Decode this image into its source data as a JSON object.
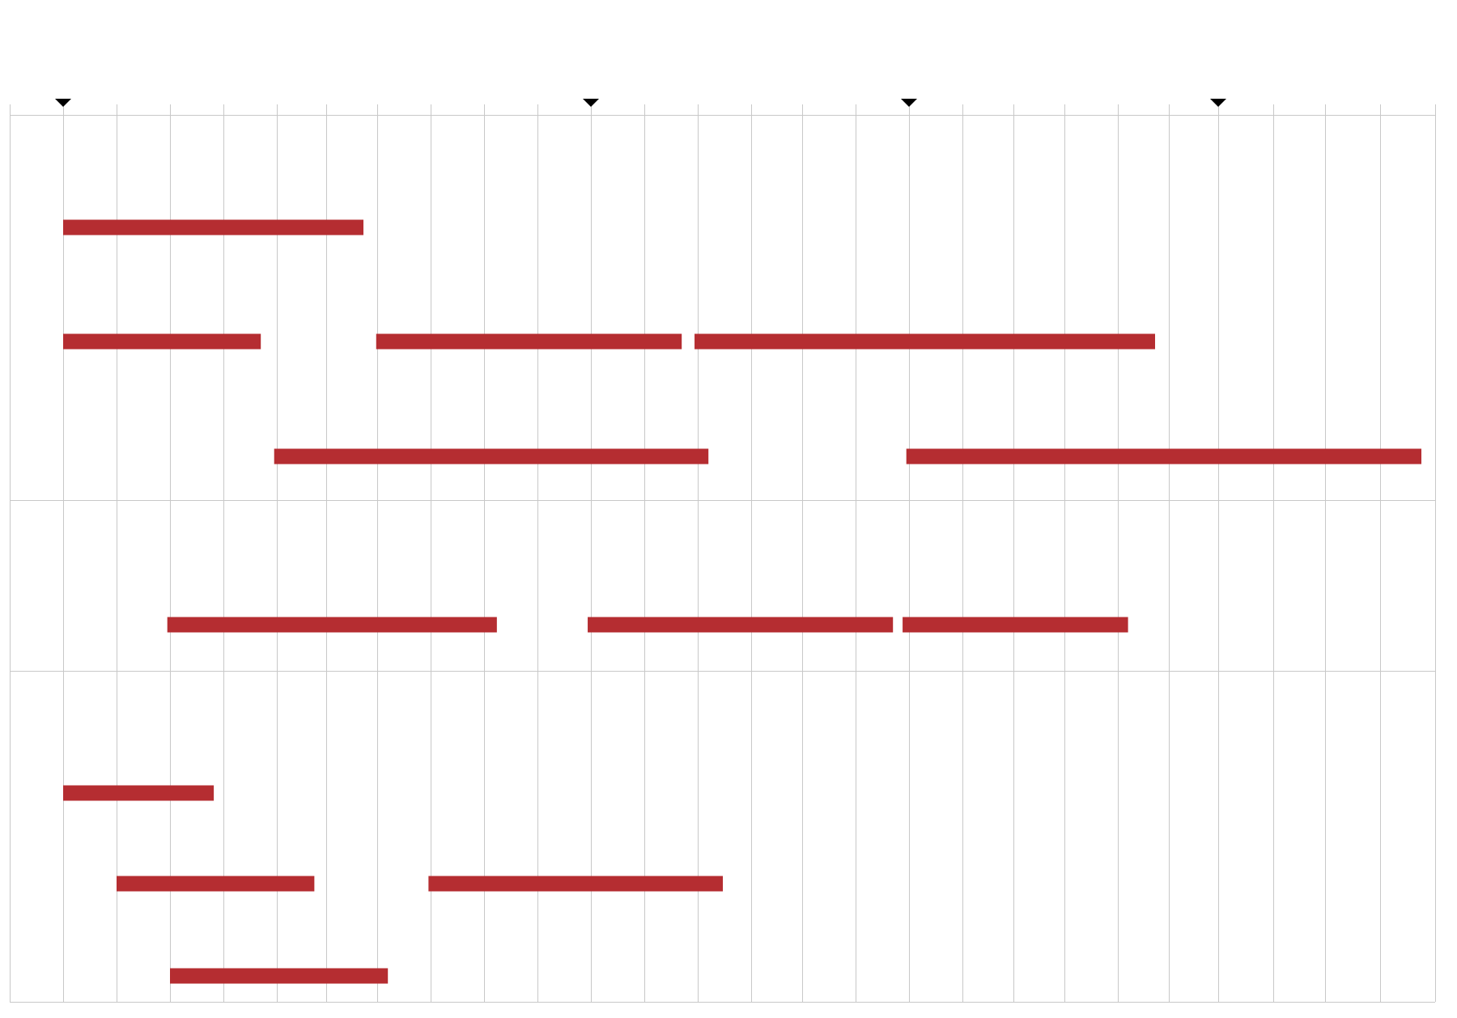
{
  "chart_data": {
    "type": "gantt",
    "title": "",
    "xlabel": "",
    "ylabel": "",
    "grid": true,
    "bar_color": "#b52d31",
    "grid_color": "#c8c8c8",
    "marker_color": "#000000",
    "x_columns": 27,
    "xlim": [
      0,
      27
    ],
    "column_boundaries": [
      0,
      1,
      2,
      3,
      4,
      5,
      6,
      7,
      8,
      9,
      10,
      11,
      12,
      13,
      14,
      15,
      16,
      17,
      18,
      19,
      20,
      21,
      22,
      23,
      24,
      25,
      26,
      27
    ],
    "milestones": [
      1,
      11,
      17,
      23
    ],
    "groups": [
      {
        "rows": [
          {
            "bars": [
              {
                "start": 1.0,
                "end": 6.73
              }
            ]
          },
          {
            "bars": [
              {
                "start": 1.0,
                "end": 4.7
              },
              {
                "start": 6.98,
                "end": 12.7
              },
              {
                "start": 12.94,
                "end": 21.73
              }
            ]
          },
          {
            "bars": [
              {
                "start": 4.95,
                "end": 13.2
              },
              {
                "start": 16.95,
                "end": 26.75
              }
            ]
          }
        ]
      },
      {
        "rows": [
          {
            "bars": [
              {
                "start": 2.95,
                "end": 9.24
              },
              {
                "start": 10.94,
                "end": 16.7
              },
              {
                "start": 16.88,
                "end": 21.2
              }
            ]
          }
        ]
      },
      {
        "rows": [
          {
            "bars": [
              {
                "start": 1.0,
                "end": 3.82
              }
            ]
          },
          {
            "bars": [
              {
                "start": 2.0,
                "end": 5.76
              },
              {
                "start": 7.96,
                "end": 13.47
              }
            ]
          },
          {
            "bars": [
              {
                "start": 3.0,
                "end": 7.2
              }
            ]
          }
        ]
      }
    ]
  }
}
